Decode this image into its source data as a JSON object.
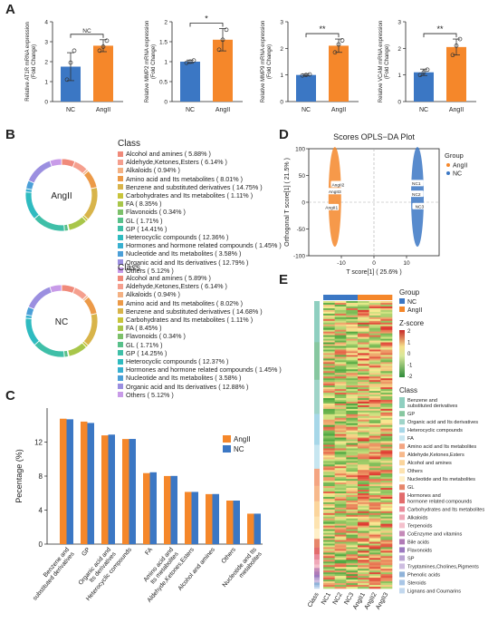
{
  "panels": {
    "a": "A",
    "b": "B",
    "c": "C",
    "d": "D",
    "e": "E"
  },
  "chart_data": [
    {
      "type": "bar",
      "id": "A1",
      "categories": [
        "NC",
        "AngII"
      ],
      "values": [
        1.75,
        2.8
      ],
      "errors": [
        0.7,
        0.3
      ],
      "points": [
        [
          1.1,
          1.95,
          2.55
        ],
        [
          2.55,
          2.75,
          3.05
        ]
      ],
      "ylabel_lines": [
        "Relative AT1R mRNA expression",
        "(Fold Change)"
      ],
      "ylim": [
        0,
        4
      ],
      "ticks": [
        0,
        1,
        2,
        3,
        4
      ],
      "significance": "NC",
      "colors": [
        "#3b77c4",
        "#f5872a"
      ]
    },
    {
      "type": "bar",
      "id": "A2",
      "categories": [
        "NC",
        "AngII"
      ],
      "values": [
        1.0,
        1.55
      ],
      "errors": [
        0.04,
        0.28
      ],
      "points": [
        [
          0.97,
          1.0,
          1.03
        ],
        [
          1.3,
          1.55,
          1.8
        ]
      ],
      "ylabel_lines": [
        "Relative MMP2 mRNA expression",
        "(Fold Change)"
      ],
      "ylim": [
        0,
        2.0
      ],
      "ticks": [
        0.0,
        0.5,
        1.0,
        1.5,
        2.0
      ],
      "significance": "*",
      "colors": [
        "#3b77c4",
        "#f5872a"
      ]
    },
    {
      "type": "bar",
      "id": "A3",
      "categories": [
        "NC",
        "AngII"
      ],
      "values": [
        1.0,
        2.1
      ],
      "errors": [
        0.03,
        0.25
      ],
      "points": [
        [
          0.98,
          1.0,
          1.02
        ],
        [
          1.85,
          2.15,
          2.3
        ]
      ],
      "ylabel_lines": [
        "Relative MMP9 mRNA expression",
        "(Fold Change)"
      ],
      "ylim": [
        0,
        3
      ],
      "ticks": [
        0,
        1,
        2,
        3
      ],
      "significance": "**",
      "colors": [
        "#3b77c4",
        "#f5872a"
      ]
    },
    {
      "type": "bar",
      "id": "A4",
      "categories": [
        "NC",
        "AngII"
      ],
      "values": [
        1.1,
        2.05
      ],
      "errors": [
        0.12,
        0.3
      ],
      "points": [
        [
          1.0,
          1.1,
          1.2
        ],
        [
          1.75,
          2.1,
          2.35
        ]
      ],
      "ylabel_lines": [
        "Relative VCAM mRNA expression",
        "(Fold Change)"
      ],
      "ylim": [
        0,
        3
      ],
      "ticks": [
        0,
        1,
        2,
        3
      ],
      "significance": "**",
      "colors": [
        "#3b77c4",
        "#f5872a"
      ]
    },
    {
      "type": "pie",
      "id": "B1",
      "center_label": "AngII",
      "legend_title": "Class",
      "labels": [
        "Alcohol and amines ( 5.88% )",
        "Aldehyde,Ketones,Esters ( 6.14% )",
        "Alkaloids ( 0.94% )",
        "Amino acid and Its metabolites ( 8.01% )",
        "Benzene and substituted derivatives ( 14.75% )",
        "Carbohydrates and Its metabolites ( 1.11% )",
        "FA ( 8.35% )",
        "Flavonoids ( 0.34% )",
        "GL ( 1.71% )",
        "GP ( 14.41% )",
        "Heterocyclic compounds ( 12.36% )",
        "Hormones and hormone related compounds ( 1.45% )",
        "Nucleotide and Its metabolites ( 3.58% )",
        "Organic acid and Its derivatives ( 12.79% )",
        "Others ( 5.12% )"
      ],
      "values": [
        5.88,
        6.14,
        0.94,
        8.01,
        14.75,
        1.11,
        8.35,
        0.34,
        1.71,
        14.41,
        12.36,
        1.45,
        3.58,
        12.79,
        5.12
      ]
    },
    {
      "type": "pie",
      "id": "B2",
      "center_label": "NC",
      "legend_title": "Class",
      "labels": [
        "Alcohol and amines ( 5.89% )",
        "Aldehyde,Ketones,Esters ( 6.14% )",
        "Alkaloids ( 0.94% )",
        "Amino acid and Its metabolites ( 8.02% )",
        "Benzene and substituted derivatives ( 14.68% )",
        "Carbohydrates and Its metabolites ( 1.11% )",
        "FA ( 8.45% )",
        "Flavonoids ( 0.34% )",
        "GL ( 1.71% )",
        "GP ( 14.25% )",
        "Heterocyclic compounds ( 12.37% )",
        "Hormones and hormone related compounds ( 1.45% )",
        "Nucleotide and Its metabolites ( 3.58% )",
        "Organic acid and Its derivatives ( 12.88% )",
        "Others ( 5.12% )"
      ],
      "values": [
        5.89,
        6.14,
        0.94,
        8.02,
        14.68,
        1.11,
        8.45,
        0.34,
        1.71,
        14.25,
        12.37,
        1.45,
        3.58,
        12.88,
        5.12
      ]
    },
    {
      "type": "bar",
      "id": "C",
      "ylabel": "Pecentage (%)",
      "ylim": [
        0,
        16
      ],
      "ticks": [
        0,
        4,
        8,
        12
      ],
      "categories": [
        "Benzene and substituted derivatives",
        "GP",
        "Organic acid and Its derivatives",
        "Heterocyclic compounds",
        "FA",
        "Amino acid and Its metabolites",
        "Aldehyde,Ketones,Esters",
        "Alcohol and amines",
        "Others",
        "Nucleotide and Its metabolites"
      ],
      "category_lines": [
        [
          "Benzene and",
          "substituted derivatives"
        ],
        [
          "GP"
        ],
        [
          "Organic acid and",
          "Its derivatives"
        ],
        [
          "Heterocyclic compounds"
        ],
        [
          "FA"
        ],
        [
          "Amino acid and",
          "Its metabolites"
        ],
        [
          "Aldehyde,Ketones,Esters"
        ],
        [
          "Alcohol and amines"
        ],
        [
          "Others"
        ],
        [
          "Nucleotide and Its",
          "metabolites"
        ]
      ],
      "series": [
        {
          "name": "AngII",
          "color": "#f5872a",
          "values": [
            14.75,
            14.41,
            12.79,
            12.36,
            8.35,
            8.01,
            6.14,
            5.88,
            5.12,
            3.58
          ]
        },
        {
          "name": "NC",
          "color": "#3b77c4",
          "values": [
            14.68,
            14.25,
            12.88,
            12.37,
            8.45,
            8.02,
            6.14,
            5.89,
            5.12,
            3.58
          ]
        }
      ],
      "legend": "top-right"
    },
    {
      "type": "scatter",
      "id": "D",
      "title": "Scores OPLS−DA Plot",
      "xlabel": "T score[1] ( 25.6% )",
      "ylabel": "Orthogonal T score[1] ( 21.5% )",
      "xlim": [
        -20,
        20
      ],
      "ylim": [
        -100,
        100
      ],
      "xticks": [
        -10,
        0,
        10
      ],
      "yticks": [
        -100,
        -50,
        0,
        50,
        100
      ],
      "legend_title": "Group",
      "series": [
        {
          "name": "AngII",
          "color": "#f5872a",
          "points": [
            {
              "x": -11,
              "y": 33,
              "label": "AngII2"
            },
            {
              "x": -12,
              "y": 20,
              "label": "AngII3"
            },
            {
              "x": -13,
              "y": -10,
              "label": "AngII1"
            }
          ]
        },
        {
          "name": "NC",
          "color": "#3b77c4",
          "points": [
            {
              "x": 13,
              "y": 35,
              "label": "NC1"
            },
            {
              "x": 13,
              "y": 15,
              "label": "NC2"
            },
            {
              "x": 14,
              "y": -8,
              "label": "NC3"
            }
          ]
        }
      ]
    },
    {
      "type": "heatmap",
      "id": "E",
      "columns": [
        "NC1",
        "NC2",
        "NC3",
        "AngII1",
        "AngII2",
        "AngII3"
      ],
      "row_annotation_label": "Class",
      "group_title": "Group",
      "groups": [
        {
          "name": "NC",
          "color": "#3b77c4"
        },
        {
          "name": "AngII",
          "color": "#f5872a"
        }
      ],
      "zscore_title": "Z-score",
      "zscore_ticks": [
        "2",
        "1",
        "0",
        "-1",
        "-2"
      ],
      "class_title": "Class",
      "classes": [
        {
          "name": "Benzene and\nsubstituted derivatives",
          "color": "#8fcfc0"
        },
        {
          "name": "GP",
          "color": "#87c7a0"
        },
        {
          "name": "Organic acid and Its derivatives",
          "color": "#9fd4c8"
        },
        {
          "name": "Heterocyclic compounds",
          "color": "#a7d7e8"
        },
        {
          "name": "FA",
          "color": "#c7e6f0"
        },
        {
          "name": "Amino acid and Its metabolites",
          "color": "#f4a582"
        },
        {
          "name": "Aldehyde,Ketones,Esters",
          "color": "#f7b98c"
        },
        {
          "name": "Alcohol and amines",
          "color": "#fbd59c"
        },
        {
          "name": "Others",
          "color": "#fde3b0"
        },
        {
          "name": "Nucleotide and Its metabolites",
          "color": "#fff0c8"
        },
        {
          "name": "GL",
          "color": "#e7866a"
        },
        {
          "name": "Hormones and\nhormone related compounds",
          "color": "#e36c6c"
        },
        {
          "name": "Carbohydrates and Its metabolites",
          "color": "#e98a9a"
        },
        {
          "name": "Alkaloids",
          "color": "#f0a8b8"
        },
        {
          "name": "Terpenoids",
          "color": "#f4c0cc"
        },
        {
          "name": "CoEnzyme and vitamins",
          "color": "#c58ab8"
        },
        {
          "name": "Bile acids",
          "color": "#b07ab6"
        },
        {
          "name": "Flavonoids",
          "color": "#9c7ac0"
        },
        {
          "name": "SP",
          "color": "#b9a3d3"
        },
        {
          "name": "Tryptamines,Cholines,Pigments",
          "color": "#cdbde0"
        },
        {
          "name": "Phenolic acids",
          "color": "#8fb3d9"
        },
        {
          "name": "Steroids",
          "color": "#a9c6e6"
        },
        {
          "name": "Lignans and Coumarins",
          "color": "#c3d8ee"
        }
      ]
    }
  ]
}
